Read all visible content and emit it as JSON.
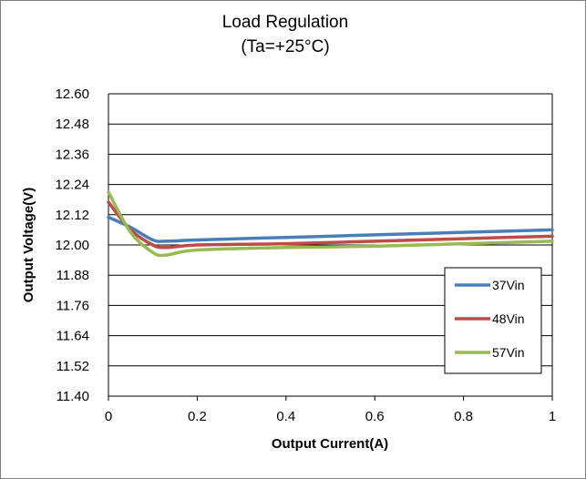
{
  "chart_data": {
    "type": "line",
    "title": "Load Regulation",
    "subtitle": "(Ta=+25°C)",
    "xlabel": "Output Current(A)",
    "ylabel": "Output Voltage(V)",
    "xlim": [
      0,
      1
    ],
    "ylim": [
      11.4,
      12.6
    ],
    "x_ticks": [
      "0",
      "0.2",
      "0.4",
      "0.6",
      "0.8",
      "1"
    ],
    "y_ticks": [
      "12.60",
      "12.48",
      "12.36",
      "12.24",
      "12.12",
      "12.00",
      "11.88",
      "11.76",
      "11.64",
      "11.52",
      "11.40"
    ],
    "grid": "horizontal",
    "legend_position": "right",
    "series": [
      {
        "name": "37Vin",
        "color": "#4a7ebb",
        "x": [
          0,
          0.05,
          0.1,
          0.13,
          0.2,
          0.4,
          0.6,
          0.8,
          1.0
        ],
        "y": [
          12.11,
          12.07,
          12.02,
          12.015,
          12.02,
          12.03,
          12.04,
          12.05,
          12.06
        ]
      },
      {
        "name": "48Vin",
        "color": "#be4b48",
        "x": [
          0,
          0.05,
          0.1,
          0.13,
          0.2,
          0.4,
          0.6,
          0.8,
          1.0
        ],
        "y": [
          12.17,
          12.06,
          12.0,
          11.99,
          12.0,
          12.005,
          12.015,
          12.025,
          12.035
        ]
      },
      {
        "name": "57Vin",
        "color": "#98b954",
        "x": [
          0,
          0.05,
          0.1,
          0.13,
          0.2,
          0.4,
          0.6,
          0.8,
          1.0
        ],
        "y": [
          12.21,
          12.05,
          11.97,
          11.96,
          11.98,
          11.99,
          11.995,
          12.005,
          12.015
        ]
      }
    ]
  }
}
